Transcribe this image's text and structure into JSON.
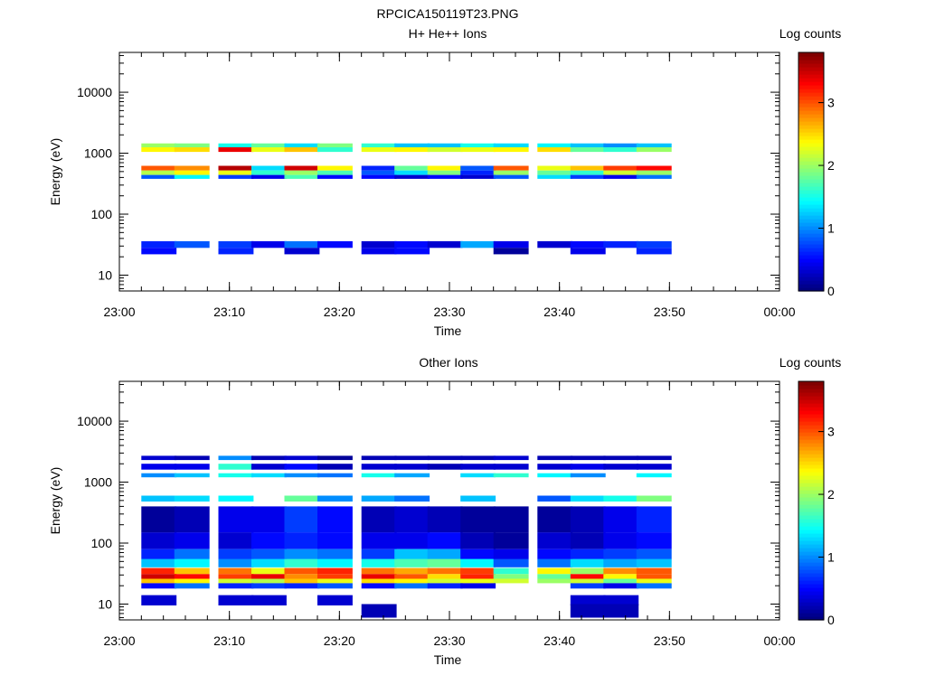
{
  "figure_title": "RPCICA150119T23.PNG",
  "chart_data": [
    {
      "type": "heatmap",
      "title": "H+ He++ Ions",
      "xlabel": "Time",
      "ylabel": "Energy (eV)",
      "xlim": [
        "23:00",
        "00:00"
      ],
      "xticks": [
        "23:00",
        "23:10",
        "23:20",
        "23:30",
        "23:40",
        "23:50",
        "00:00"
      ],
      "yscale": "log",
      "ylim": [
        5.5,
        45000
      ],
      "yticks": [
        "10",
        "100",
        "1000",
        "10000"
      ],
      "colorbar": {
        "label": "Log counts",
        "range": [
          0,
          3.8
        ],
        "ticks": [
          "0",
          "1",
          "2",
          "3"
        ]
      },
      "time_bins": [
        "23:02",
        "23:05",
        "23:09",
        "23:12",
        "23:15",
        "23:18",
        "23:22",
        "23:25",
        "23:28",
        "23:31",
        "23:34",
        "23:38",
        "23:41",
        "23:44",
        "23:47"
      ],
      "bands": [
        {
          "e": [
            1050,
            1250
          ],
          "v": [
            2.4,
            2.5,
            3.4,
            2.3,
            2.6,
            1.6,
            2.3,
            2.4,
            2.2,
            2.3,
            2.4,
            2.5,
            1.8,
            1.6,
            2.0
          ]
        },
        {
          "e": [
            1250,
            1450
          ],
          "v": [
            2.0,
            1.9,
            1.5,
            1.8,
            1.3,
            1.9,
            1.6,
            1.2,
            1.2,
            1.5,
            1.3,
            1.4,
            1.2,
            1.0,
            1.2
          ]
        },
        {
          "e": [
            520,
            620
          ],
          "v": [
            3.0,
            2.8,
            3.6,
            1.3,
            3.5,
            2.4,
            0.6,
            1.8,
            2.4,
            0.8,
            3.0,
            2.3,
            2.6,
            3.1,
            3.3
          ]
        },
        {
          "e": [
            440,
            520
          ],
          "v": [
            2.1,
            2.4,
            2.3,
            1.6,
            2.0,
            1.7,
            0.8,
            1.3,
            1.9,
            0.6,
            2.0,
            1.8,
            1.6,
            2.2,
            2.0
          ]
        },
        {
          "e": [
            380,
            440
          ],
          "v": [
            0.8,
            1.4,
            0.7,
            0.4,
            1.7,
            0.5,
            0.5,
            0.3,
            0.5,
            0.3,
            0.8,
            1.3,
            0.7,
            0.4,
            0.9
          ]
        },
        {
          "e": [
            28,
            36
          ],
          "v": [
            0.6,
            0.8,
            0.7,
            0.4,
            0.9,
            0.5,
            0.3,
            0.5,
            0.3,
            1.1,
            0.4,
            0.3,
            0.5,
            0.6,
            0.7
          ]
        },
        {
          "e": [
            22,
            28
          ],
          "v": [
            0.5,
            0.0,
            0.6,
            0.0,
            0.3,
            0.0,
            0.4,
            0.5,
            0.0,
            0.0,
            0.1,
            0.0,
            0.4,
            0.0,
            0.6
          ]
        }
      ]
    },
    {
      "type": "heatmap",
      "title": "Other Ions",
      "xlabel": "Time",
      "ylabel": "Energy (eV)",
      "xlim": [
        "23:00",
        "00:00"
      ],
      "xticks": [
        "23:00",
        "23:10",
        "23:20",
        "23:30",
        "23:40",
        "23:50",
        "00:00"
      ],
      "yscale": "log",
      "ylim": [
        5.5,
        45000
      ],
      "yticks": [
        "10",
        "100",
        "1000",
        "10000"
      ],
      "colorbar": {
        "label": "Log counts",
        "range": [
          0,
          3.8
        ],
        "ticks": [
          "0",
          "1",
          "2",
          "3"
        ]
      },
      "time_bins": [
        "23:02",
        "23:05",
        "23:09",
        "23:12",
        "23:15",
        "23:18",
        "23:22",
        "23:25",
        "23:28",
        "23:31",
        "23:34",
        "23:38",
        "23:41",
        "23:44",
        "23:47"
      ],
      "bands": [
        {
          "e": [
            31,
            39
          ],
          "v": [
            3.2,
            2.6,
            2.9,
            2.3,
            3.0,
            3.2,
            2.9,
            2.7,
            2.9,
            3.1,
            1.6,
            2.4,
            2.0,
            2.8,
            3.0
          ]
        },
        {
          "e": [
            26,
            31
          ],
          "v": [
            3.5,
            3.3,
            3.1,
            3.4,
            2.8,
            3.1,
            3.4,
            3.0,
            2.5,
            3.2,
            1.9,
            1.8,
            3.3,
            2.4,
            3.0
          ]
        },
        {
          "e": [
            22,
            26
          ],
          "v": [
            2.6,
            2.4,
            2.2,
            2.1,
            2.6,
            2.3,
            2.5,
            2.4,
            2.2,
            2.3,
            2.2,
            2.0,
            2.2,
            1.8,
            2.3
          ]
        },
        {
          "e": [
            18,
            22
          ],
          "v": [
            0.5,
            0.9,
            0.6,
            0.7,
            0.6,
            0.8,
            0.5,
            0.9,
            0.6,
            0.4,
            0.0,
            0.0,
            0.7,
            0.4,
            0.9
          ]
        },
        {
          "e": [
            40,
            55
          ],
          "v": [
            1.2,
            1.4,
            1.0,
            1.3,
            1.6,
            1.4,
            1.5,
            1.7,
            1.8,
            1.4,
            0.8,
            0.9,
            1.3,
            1.1,
            1.2
          ]
        },
        {
          "e": [
            55,
            80
          ],
          "v": [
            0.6,
            0.9,
            0.7,
            0.8,
            1.0,
            0.9,
            0.7,
            1.2,
            1.1,
            0.5,
            0.4,
            0.5,
            0.6,
            0.7,
            0.8
          ]
        },
        {
          "e": [
            80,
            150
          ],
          "v": [
            0.3,
            0.4,
            0.3,
            0.5,
            0.6,
            0.5,
            0.4,
            0.4,
            0.5,
            0.2,
            0.1,
            0.3,
            0.2,
            0.4,
            0.5
          ]
        },
        {
          "e": [
            150,
            400
          ],
          "v": [
            0.1,
            0.2,
            0.4,
            0.4,
            0.7,
            0.5,
            0.2,
            0.3,
            0.2,
            0.1,
            0.1,
            0.1,
            0.2,
            0.4,
            0.6
          ]
        },
        {
          "e": [
            480,
            600
          ],
          "v": [
            1.2,
            1.3,
            1.4,
            0.0,
            1.8,
            1.0,
            1.1,
            0.9,
            0.0,
            1.2,
            0.0,
            0.8,
            1.3,
            1.5,
            1.9
          ]
        },
        {
          "e": [
            1200,
            1400
          ],
          "v": [
            1.0,
            1.2,
            1.5,
            1.3,
            1.0,
            0.9,
            1.5,
            1.1,
            0.0,
            1.3,
            1.6,
            1.4,
            1.0,
            0.0,
            1.4
          ]
        },
        {
          "e": [
            1600,
            2000
          ],
          "v": [
            0.4,
            0.4,
            1.6,
            0.3,
            0.5,
            0.2,
            0.3,
            0.3,
            0.2,
            0.3,
            0.3,
            0.3,
            0.4,
            0.3,
            0.3
          ]
        },
        {
          "e": [
            2300,
            2700
          ],
          "v": [
            0.3,
            0.2,
            1.0,
            0.2,
            0.3,
            0.1,
            0.2,
            0.2,
            0.2,
            0.2,
            0.3,
            0.2,
            0.2,
            0.2,
            0.2
          ]
        },
        {
          "e": [
            9.5,
            14
          ],
          "v": [
            0.3,
            0.0,
            0.3,
            0.3,
            0.0,
            0.3,
            0.0,
            0.0,
            0.0,
            0.0,
            0.0,
            0.0,
            0.3,
            0.3,
            0.0
          ]
        },
        {
          "e": [
            6,
            10
          ],
          "v": [
            0.0,
            0.0,
            0.0,
            0.0,
            0.0,
            0.0,
            0.2,
            0.0,
            0.0,
            0.0,
            0.0,
            0.0,
            0.2,
            0.2,
            0.0
          ]
        }
      ]
    }
  ]
}
